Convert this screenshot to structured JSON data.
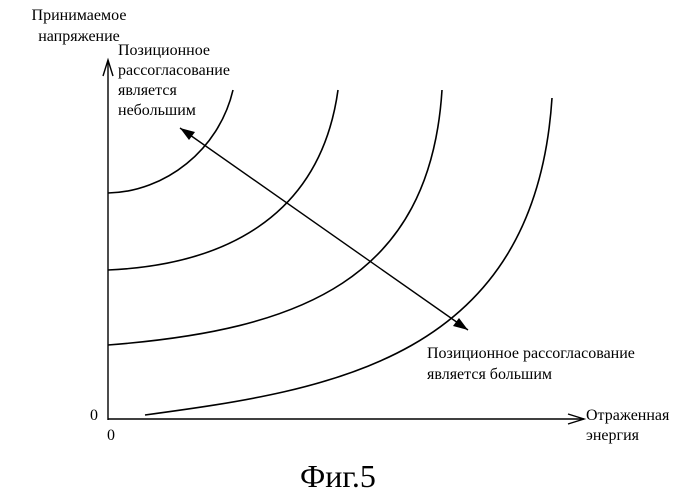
{
  "diagram": {
    "y_axis_label": "Принимаемое\nнапряжение",
    "x_axis_label": "Отраженная\nэнергия",
    "origin_y_label": "0",
    "origin_x_label": "0",
    "annotation_small_offset": "Позиционное\nрассогласование\nявляется\nнебольшим",
    "annotation_large_offset": "Позиционное рассогласование\nявляется большим",
    "figure_caption": "Фиг.5",
    "curve_count": 4,
    "line_color": "#000000",
    "background_color": "#ffffff",
    "arrow_type": "double-headed"
  }
}
